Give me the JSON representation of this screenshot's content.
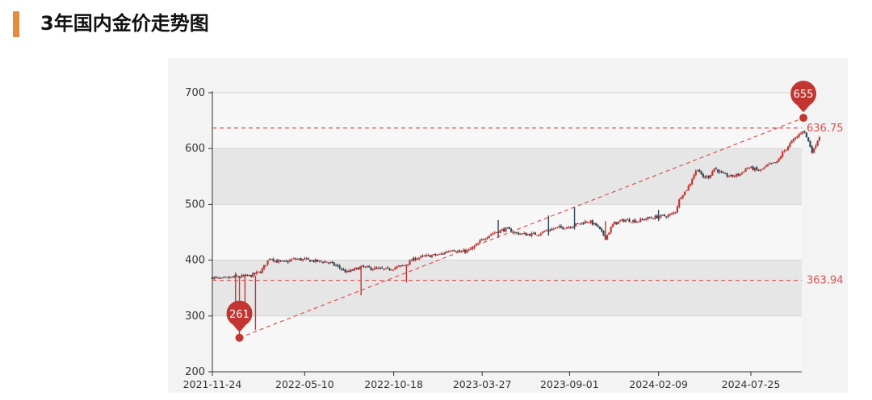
{
  "page": {
    "title": "3年国内金价走势图",
    "accent_color": "#e88a3c"
  },
  "chart_data": {
    "type": "candlestick",
    "title": "",
    "xlabel": "",
    "ylabel": "",
    "ylim": [
      200,
      700
    ],
    "yticks": [
      200,
      300,
      400,
      500,
      600,
      700
    ],
    "x_range": [
      "2021-11-24",
      "2024-10-25"
    ],
    "xtick_labels": [
      "2021-11-24",
      "2022-05-10",
      "2022-10-18",
      "2023-03-27",
      "2023-09-01",
      "2024-02-09",
      "2024-07-25"
    ],
    "grid": "horizontal bands",
    "colors": {
      "up": "#c23531",
      "down": "#2f4554",
      "band": "#e6e6e6",
      "markline": "#d9534f",
      "marker": "#c23531"
    },
    "price_path": [
      [
        "2021-11-24",
        369
      ],
      [
        "2021-12-10",
        366
      ],
      [
        "2022-01-05",
        370
      ],
      [
        "2022-02-01",
        372
      ],
      [
        "2022-02-20",
        380
      ],
      [
        "2022-03-08",
        405
      ],
      [
        "2022-03-20",
        398
      ],
      [
        "2022-04-05",
        396
      ],
      [
        "2022-04-20",
        402
      ],
      [
        "2022-05-10",
        401
      ],
      [
        "2022-06-01",
        398
      ],
      [
        "2022-06-20",
        397
      ],
      [
        "2022-07-10",
        388
      ],
      [
        "2022-07-25",
        378
      ],
      [
        "2022-08-10",
        384
      ],
      [
        "2022-08-20",
        388
      ],
      [
        "2022-09-10",
        385
      ],
      [
        "2022-10-05",
        383
      ],
      [
        "2022-10-18",
        386
      ],
      [
        "2022-11-05",
        390
      ],
      [
        "2022-11-25",
        403
      ],
      [
        "2022-12-15",
        407
      ],
      [
        "2023-01-10",
        410
      ],
      [
        "2023-02-01",
        420
      ],
      [
        "2023-02-15",
        414
      ],
      [
        "2023-03-05",
        418
      ],
      [
        "2023-03-20",
        430
      ],
      [
        "2023-03-27",
        437
      ],
      [
        "2023-04-10",
        446
      ],
      [
        "2023-04-25",
        452
      ],
      [
        "2023-05-10",
        456
      ],
      [
        "2023-05-25",
        449
      ],
      [
        "2023-06-15",
        446
      ],
      [
        "2023-07-05",
        447
      ],
      [
        "2023-07-25",
        454
      ],
      [
        "2023-08-10",
        458
      ],
      [
        "2023-09-01",
        460
      ],
      [
        "2023-09-20",
        466
      ],
      [
        "2023-10-05",
        470
      ],
      [
        "2023-10-20",
        462
      ],
      [
        "2023-11-05",
        440
      ],
      [
        "2023-11-20",
        466
      ],
      [
        "2023-12-10",
        472
      ],
      [
        "2024-01-01",
        470
      ],
      [
        "2024-01-20",
        475
      ],
      [
        "2024-02-09",
        478
      ],
      [
        "2024-02-28",
        480
      ],
      [
        "2024-03-10",
        486
      ],
      [
        "2024-03-20",
        515
      ],
      [
        "2024-03-28",
        523
      ],
      [
        "2024-04-05",
        535
      ],
      [
        "2024-04-12",
        552
      ],
      [
        "2024-04-20",
        565
      ],
      [
        "2024-04-28",
        548
      ],
      [
        "2024-05-10",
        550
      ],
      [
        "2024-05-20",
        565
      ],
      [
        "2024-06-05",
        553
      ],
      [
        "2024-06-20",
        550
      ],
      [
        "2024-07-05",
        554
      ],
      [
        "2024-07-18",
        566
      ],
      [
        "2024-07-25",
        565
      ],
      [
        "2024-08-10",
        560
      ],
      [
        "2024-08-25",
        570
      ],
      [
        "2024-09-10",
        575
      ],
      [
        "2024-09-20",
        592
      ],
      [
        "2024-10-05",
        610
      ],
      [
        "2024-10-20",
        625
      ],
      [
        "2024-10-28",
        634
      ],
      [
        "2024-11-05",
        615
      ],
      [
        "2024-11-14",
        592
      ],
      [
        "2024-11-20",
        610
      ],
      [
        "2024-11-26",
        622
      ]
    ],
    "spikes": [
      {
        "date": "2022-01-05",
        "high": 378,
        "low": 300
      },
      {
        "date": "2022-01-12",
        "high": 372,
        "low": 261
      },
      {
        "date": "2022-01-22",
        "high": 372,
        "low": 300
      },
      {
        "date": "2022-02-10",
        "high": 372,
        "low": 275
      },
      {
        "date": "2022-08-20",
        "high": 390,
        "low": 337
      },
      {
        "date": "2022-11-10",
        "high": 392,
        "low": 360
      },
      {
        "date": "2023-04-25",
        "high": 472,
        "low": 440
      },
      {
        "date": "2023-07-25",
        "high": 480,
        "low": 444
      },
      {
        "date": "2023-09-10",
        "high": 495,
        "low": 455
      },
      {
        "date": "2023-11-05",
        "high": 470,
        "low": 436
      },
      {
        "date": "2024-02-09",
        "high": 490,
        "low": 470
      }
    ],
    "mark_points": [
      {
        "label": "261",
        "date": "2022-01-12",
        "value": 261
      },
      {
        "label": "655",
        "date": "2024-10-28",
        "value": 655
      }
    ],
    "mark_lines": [
      {
        "label": "636.75",
        "value": 636.75
      },
      {
        "label": "363.94",
        "value": 363.94
      }
    ],
    "trend_line": {
      "from": [
        "2022-01-12",
        261
      ],
      "to": [
        "2024-10-28",
        655
      ]
    }
  }
}
